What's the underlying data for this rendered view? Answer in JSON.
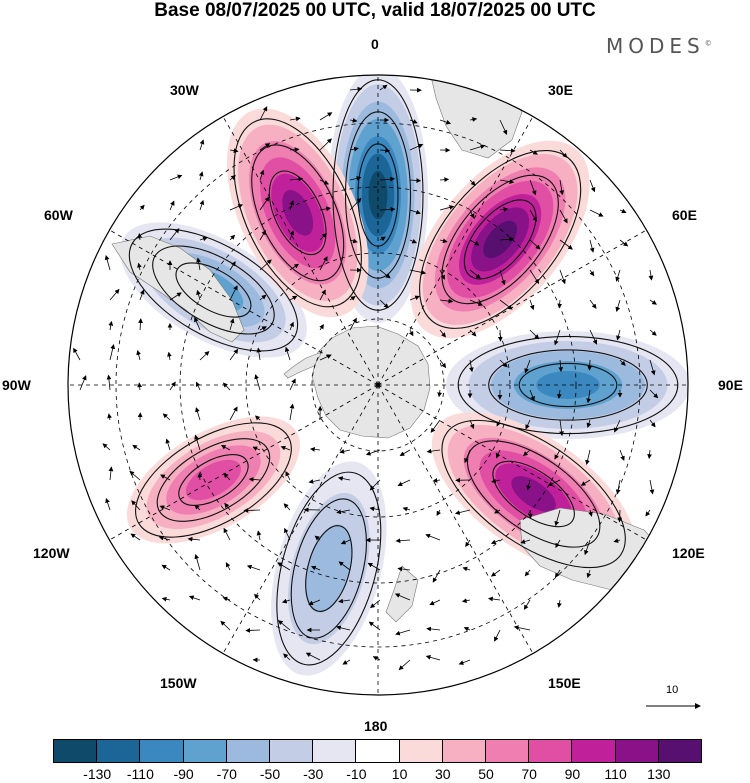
{
  "title": "Base 08/07/2025 00 UTC, valid 18/07/2025 00 UTC",
  "brand": "MODES",
  "brand_mark": "©",
  "map": {
    "projection": "south-polar stereographic",
    "longitude_labels": {
      "lon_0": "0",
      "lon_30E": "30E",
      "lon_60E": "60E",
      "lon_90E": "90E",
      "lon_120E": "120E",
      "lon_150E": "150E",
      "lon_180": "180",
      "lon_150W": "150W",
      "lon_120W": "120W",
      "lon_90W": "90W",
      "lon_60W": "60W",
      "lon_30W": "30W"
    },
    "anomaly_centers": [
      {
        "name": "negative-0",
        "lon": 0,
        "sign": "negative",
        "value": -130
      },
      {
        "name": "positive-40E",
        "lon": 40,
        "sign": "positive",
        "value": 130
      },
      {
        "name": "negative-90E",
        "lon": 90,
        "sign": "negative",
        "value": -90
      },
      {
        "name": "positive-125E",
        "lon": 125,
        "sign": "positive",
        "value": 110
      },
      {
        "name": "negative-165W",
        "lon": -165,
        "sign": "negative",
        "value": -50
      },
      {
        "name": "positive-120W",
        "lon": -120,
        "sign": "positive",
        "value": 70
      },
      {
        "name": "negative-60W",
        "lon": -60,
        "sign": "negative",
        "value": -70
      },
      {
        "name": "positive-25W",
        "lon": -25,
        "sign": "positive",
        "value": 110
      }
    ],
    "reference_vector_label": "10"
  },
  "legend": {
    "ticks": [
      "-130",
      "-110",
      "-90",
      "-70",
      "-50",
      "-30",
      "-10",
      "10",
      "30",
      "50",
      "70",
      "90",
      "110",
      "130"
    ],
    "colors": [
      "#0f4a6a",
      "#1b6597",
      "#3a88bf",
      "#5fa1cf",
      "#9bbadd",
      "#c3cde6",
      "#e6e6f2",
      "#ffffff",
      "#fbdada",
      "#f6b0c2",
      "#ef7fb0",
      "#e04fa4",
      "#c0209a",
      "#8a1288",
      "#581070"
    ]
  }
}
